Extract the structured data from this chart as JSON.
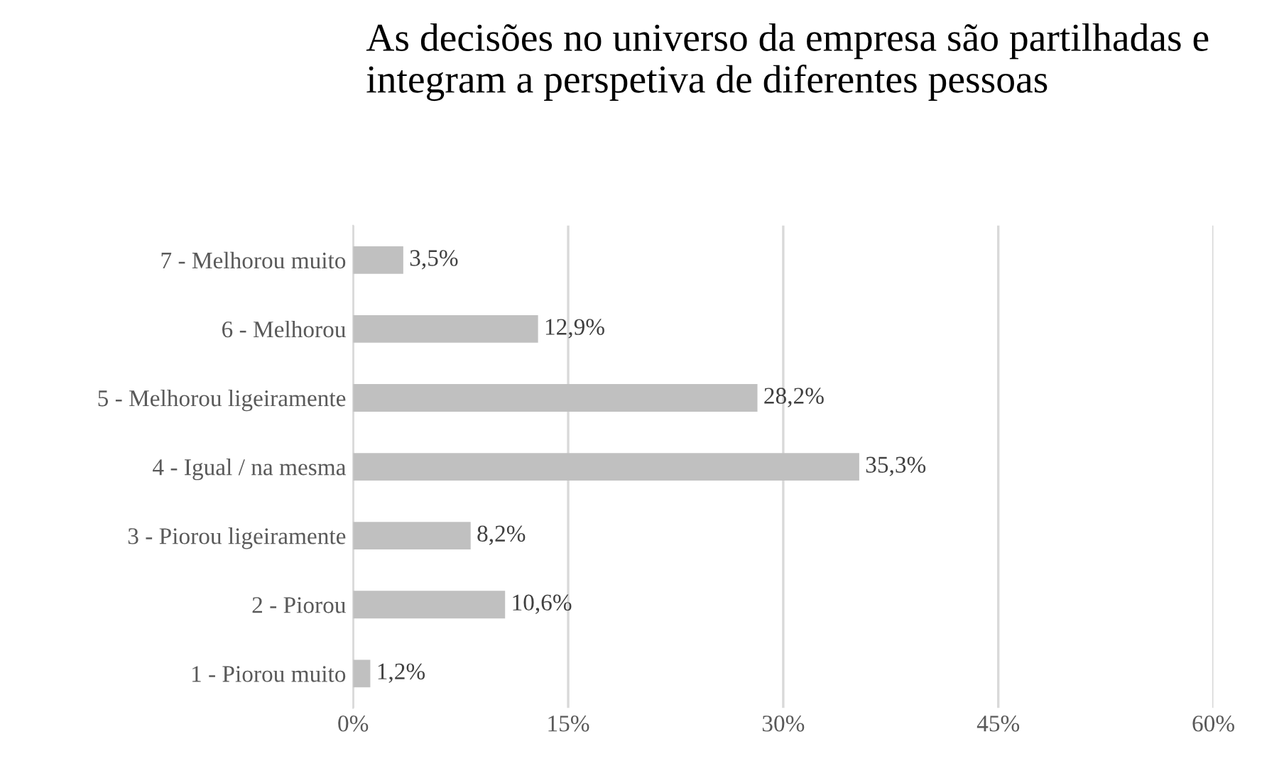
{
  "chart_data": {
    "type": "bar",
    "orientation": "horizontal",
    "title": "As decisões no universo da empresa são partilhadas e integram a perspetiva de diferentes pessoas",
    "categories": [
      "7 - Melhorou muito",
      "6 - Melhorou",
      "5 - Melhorou ligeiramente",
      "4 - Igual / na mesma",
      "3 - Piorou ligeiramente",
      "2 - Piorou",
      "1 - Piorou muito"
    ],
    "values": [
      3.5,
      12.9,
      28.2,
      35.3,
      8.2,
      10.6,
      1.2
    ],
    "value_labels": [
      "3,5%",
      "12,9%",
      "28,2%",
      "35,3%",
      "8,2%",
      "10,6%",
      "1,2%"
    ],
    "color": "#c0c0c0",
    "xlim": [
      0,
      60
    ],
    "xticks": [
      {
        "value": 0,
        "label": "0%"
      },
      {
        "value": 15,
        "label": "15%"
      },
      {
        "value": 30,
        "label": "30%"
      },
      {
        "value": 45,
        "label": "45%"
      },
      {
        "value": 60,
        "label": "60%"
      }
    ],
    "grid": "x",
    "legend": false
  }
}
